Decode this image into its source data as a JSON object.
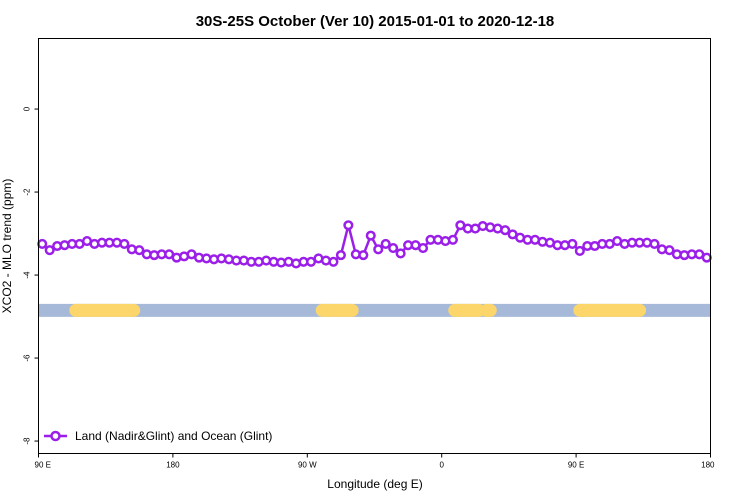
{
  "chart_data": {
    "type": "line",
    "title": "30S-25S October (Ver 10)   2015-01-01 to 2020-12-18",
    "xlabel": "Longitude (deg E)",
    "ylabel": "XCO2 - MLO trend (ppm)",
    "xlim": [
      90,
      450
    ],
    "ylim": [
      -8.3,
      1.7
    ],
    "x_ticks": [
      {
        "value": 90,
        "label": "90 E"
      },
      {
        "value": 162,
        "label": "180"
      },
      {
        "value": 234,
        "label": "90 W"
      },
      {
        "value": 306,
        "label": "0"
      },
      {
        "value": 378,
        "label": "90 E"
      },
      {
        "value": 450,
        "label": "180"
      }
    ],
    "y_ticks": [
      {
        "value": 0,
        "label": "0"
      },
      {
        "value": -2,
        "label": "-2"
      },
      {
        "value": -4,
        "label": "-4"
      },
      {
        "value": -6,
        "label": "-6"
      },
      {
        "value": -8,
        "label": "-8"
      }
    ],
    "series": [
      {
        "name": "Land (Nadir&Glint) and Ocean (Glint)",
        "color": "#9b1fe8",
        "x": [
          92,
          96,
          100,
          104,
          108,
          112,
          116,
          120,
          124,
          128,
          132,
          136,
          140,
          144,
          148,
          152,
          156,
          160,
          164,
          168,
          172,
          176,
          180,
          184,
          188,
          192,
          196,
          200,
          204,
          208,
          212,
          216,
          220,
          224,
          228,
          232,
          236,
          240,
          244,
          248,
          252,
          256,
          260,
          264,
          268,
          272,
          276,
          280,
          284,
          288,
          292,
          296,
          300,
          304,
          308,
          312,
          316,
          320,
          324,
          328,
          332,
          336,
          340,
          344,
          348,
          352,
          356,
          360,
          364,
          368,
          372,
          376,
          380,
          384,
          388,
          392,
          396,
          400,
          404,
          408,
          412,
          416,
          420,
          424,
          428,
          432,
          436,
          440,
          444,
          448
        ],
        "y": [
          -3.25,
          -3.4,
          -3.3,
          -3.28,
          -3.25,
          -3.25,
          -3.18,
          -3.25,
          -3.22,
          -3.22,
          -3.22,
          -3.25,
          -3.38,
          -3.4,
          -3.5,
          -3.52,
          -3.5,
          -3.5,
          -3.58,
          -3.55,
          -3.5,
          -3.58,
          -3.6,
          -3.62,
          -3.6,
          -3.62,
          -3.65,
          -3.65,
          -3.68,
          -3.68,
          -3.65,
          -3.68,
          -3.7,
          -3.68,
          -3.72,
          -3.68,
          -3.68,
          -3.6,
          -3.65,
          -3.68,
          -3.52,
          -2.8,
          -3.5,
          -3.52,
          -3.05,
          -3.38,
          -3.25,
          -3.35,
          -3.48,
          -3.28,
          -3.28,
          -3.35,
          -3.15,
          -3.15,
          -3.18,
          -3.15,
          -2.8,
          -2.88,
          -2.88,
          -2.82,
          -2.85,
          -2.88,
          -2.92,
          -3.02,
          -3.1,
          -3.15,
          -3.15,
          -3.2,
          -3.22,
          -3.28,
          -3.28,
          -3.25,
          -3.42,
          -3.3,
          -3.3,
          -3.25,
          -3.25,
          -3.18,
          -3.25,
          -3.22,
          -3.22,
          -3.22,
          -3.25,
          -3.38,
          -3.4,
          -3.5,
          -3.52,
          -3.5,
          -3.5,
          -3.58
        ]
      }
    ],
    "surface_strip": {
      "y": -4.85,
      "base_color": "#a6b9d8",
      "land_color": "#fcd66a",
      "land_ranges": [
        [
          110,
          141
        ],
        [
          242,
          258
        ],
        [
          313,
          326
        ],
        [
          330,
          332
        ],
        [
          380,
          412
        ]
      ]
    },
    "grid": false,
    "legend": {
      "position": "bottom-left",
      "entries": [
        "Land (Nadir&Glint) and Ocean (Glint)"
      ]
    }
  }
}
